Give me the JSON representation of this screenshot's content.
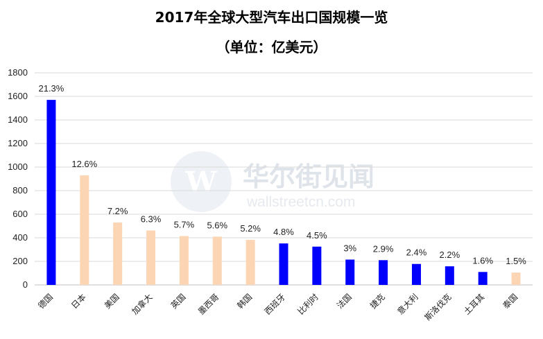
{
  "chart_data": {
    "type": "bar",
    "title": "2017年全球大型汽车出口国规模一览",
    "subtitle": "（单位：亿美元）",
    "categories": [
      "德国",
      "日本",
      "美国",
      "加拿大",
      "英国",
      "墨西哥",
      "韩国",
      "西班牙",
      "比利时",
      "法国",
      "捷克",
      "意大利",
      "斯洛伐克",
      "土耳其",
      "泰国"
    ],
    "values": [
      1570,
      930,
      530,
      462,
      415,
      410,
      382,
      352,
      325,
      215,
      210,
      178,
      158,
      110,
      105
    ],
    "data_labels": [
      "21.3%",
      "12.6%",
      "7.2%",
      "6.3%",
      "5.7%",
      "5.6%",
      "5.2%",
      "4.8%",
      "4.5%",
      "3%",
      "2.9%",
      "2.4%",
      "2.2%",
      "1.6%",
      "1.5%"
    ],
    "bar_colors": [
      "#0000ff",
      "#fcd5b4",
      "#fcd5b4",
      "#fcd5b4",
      "#fcd5b4",
      "#fcd5b4",
      "#fcd5b4",
      "#0000ff",
      "#0000ff",
      "#0000ff",
      "#0000ff",
      "#0000ff",
      "#0000ff",
      "#0000ff",
      "#fcd5b4"
    ],
    "ylim": [
      0,
      1800
    ],
    "yticks": [
      0,
      200,
      400,
      600,
      800,
      1000,
      1200,
      1400,
      1600,
      1800
    ],
    "grid": true,
    "xlabel": "",
    "ylabel": ""
  },
  "watermark": {
    "text_cn": "华尔街见闻",
    "text_en": "wallstreetcn.com",
    "logo_letter": "W"
  }
}
